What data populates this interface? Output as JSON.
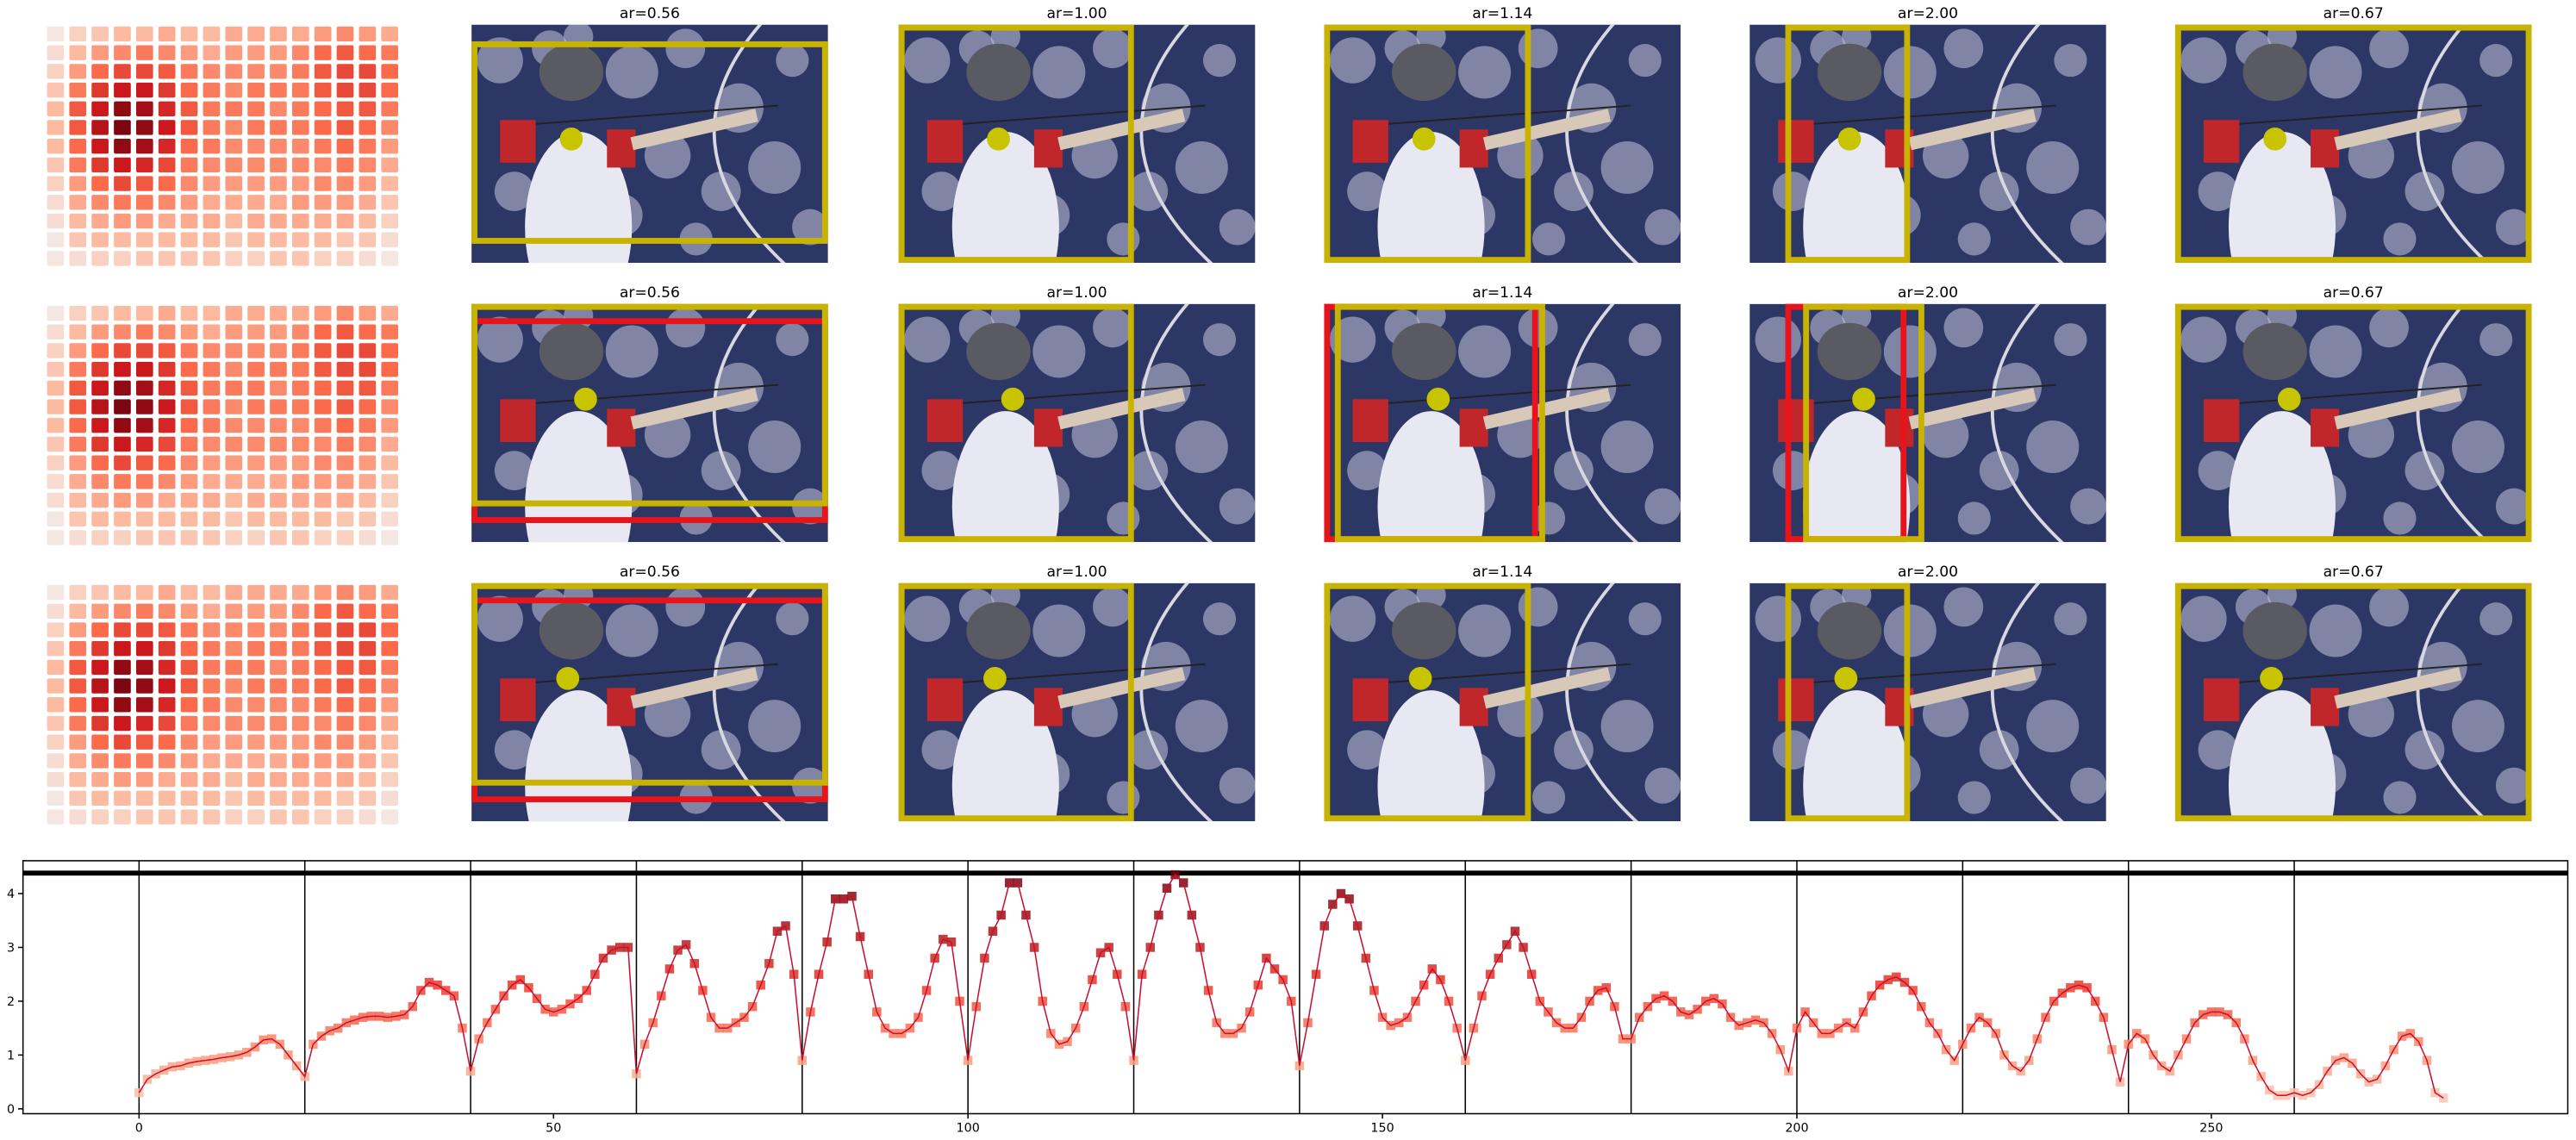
{
  "panels": {
    "rows": [
      {
        "titles": [
          "ar=0.56",
          "ar=1.00",
          "ar=1.14",
          "ar=2.00",
          "ar=0.67"
        ]
      },
      {
        "titles": [
          "ar=0.56",
          "ar=1.00",
          "ar=1.14",
          "ar=2.00",
          "ar=0.67"
        ]
      },
      {
        "titles": [
          "ar=0.56",
          "ar=1.00",
          "ar=1.14",
          "ar=2.00",
          "ar=0.67"
        ]
      }
    ],
    "heatmap": {
      "type": "heatmap",
      "color_scale": [
        "#f2f2f2",
        "#fcbba1",
        "#fb6a4a",
        "#cb181d",
        "#67000d"
      ],
      "values": [
        [
          0.05,
          0.15,
          0.2,
          0.25,
          0.25,
          0.3,
          0.25,
          0.25,
          0.3,
          0.3,
          0.3,
          0.3,
          0.35,
          0.4,
          0.35,
          0.3
        ],
        [
          0.1,
          0.25,
          0.35,
          0.4,
          0.45,
          0.4,
          0.35,
          0.3,
          0.35,
          0.35,
          0.35,
          0.4,
          0.5,
          0.55,
          0.5,
          0.45
        ],
        [
          0.15,
          0.35,
          0.5,
          0.6,
          0.6,
          0.55,
          0.45,
          0.4,
          0.4,
          0.4,
          0.4,
          0.45,
          0.55,
          0.6,
          0.6,
          0.5
        ],
        [
          0.2,
          0.45,
          0.65,
          0.75,
          0.75,
          0.65,
          0.5,
          0.45,
          0.4,
          0.45,
          0.45,
          0.45,
          0.55,
          0.6,
          0.6,
          0.5
        ],
        [
          0.25,
          0.55,
          0.75,
          0.9,
          0.85,
          0.7,
          0.55,
          0.45,
          0.45,
          0.45,
          0.4,
          0.45,
          0.5,
          0.55,
          0.55,
          0.45
        ],
        [
          0.25,
          0.55,
          0.8,
          0.95,
          0.9,
          0.75,
          0.55,
          0.45,
          0.4,
          0.45,
          0.45,
          0.45,
          0.5,
          0.55,
          0.5,
          0.4
        ],
        [
          0.25,
          0.5,
          0.75,
          0.9,
          0.85,
          0.7,
          0.5,
          0.45,
          0.4,
          0.4,
          0.4,
          0.4,
          0.45,
          0.5,
          0.45,
          0.35
        ],
        [
          0.2,
          0.45,
          0.65,
          0.75,
          0.7,
          0.6,
          0.45,
          0.4,
          0.4,
          0.4,
          0.4,
          0.4,
          0.4,
          0.45,
          0.4,
          0.3
        ],
        [
          0.15,
          0.35,
          0.5,
          0.6,
          0.55,
          0.5,
          0.4,
          0.35,
          0.35,
          0.35,
          0.35,
          0.35,
          0.4,
          0.4,
          0.35,
          0.25
        ],
        [
          0.1,
          0.3,
          0.4,
          0.45,
          0.45,
          0.4,
          0.35,
          0.3,
          0.3,
          0.3,
          0.3,
          0.35,
          0.35,
          0.35,
          0.3,
          0.2
        ],
        [
          0.1,
          0.25,
          0.3,
          0.35,
          0.35,
          0.3,
          0.3,
          0.3,
          0.25,
          0.3,
          0.3,
          0.3,
          0.3,
          0.3,
          0.25,
          0.15
        ],
        [
          0.05,
          0.2,
          0.25,
          0.25,
          0.25,
          0.25,
          0.25,
          0.25,
          0.2,
          0.25,
          0.25,
          0.25,
          0.25,
          0.2,
          0.2,
          0.1
        ],
        [
          0.05,
          0.1,
          0.15,
          0.15,
          0.2,
          0.2,
          0.2,
          0.2,
          0.15,
          0.15,
          0.2,
          0.2,
          0.15,
          0.15,
          0.1,
          0.05
        ]
      ]
    }
  },
  "chart_data": {
    "type": "line",
    "color": "#c8102e",
    "marker_color_scale": [
      "#fcd5c5",
      "#fc9272",
      "#ef3b2c",
      "#a50f15",
      "#67000d"
    ],
    "x": [
      0,
      1,
      2,
      3,
      4,
      5,
      6,
      7,
      8,
      9,
      10,
      11,
      12,
      13,
      14,
      15,
      16,
      17,
      18,
      19,
      20,
      21,
      22,
      23,
      24,
      25,
      26,
      27,
      28,
      29,
      30,
      31,
      32,
      33,
      34,
      35,
      36,
      37,
      38,
      39,
      40,
      41,
      42,
      43,
      44,
      45,
      46,
      47,
      48,
      49,
      50,
      51,
      52,
      53,
      54,
      55,
      56,
      57,
      58,
      59,
      60,
      61,
      62,
      63,
      64,
      65,
      66,
      67,
      68,
      69,
      70,
      71,
      72,
      73,
      74,
      75,
      76,
      77,
      78,
      79,
      80,
      81,
      82,
      83,
      84,
      85,
      86,
      87,
      88,
      89,
      90,
      91,
      92,
      93,
      94,
      95,
      96,
      97,
      98,
      99,
      100,
      101,
      102,
      103,
      104,
      105,
      106,
      107,
      108,
      109,
      110,
      111,
      112,
      113,
      114,
      115,
      116,
      117,
      118,
      119,
      120,
      121,
      122,
      123,
      124,
      125,
      126,
      127,
      128,
      129,
      130,
      131,
      132,
      133,
      134,
      135,
      136,
      137,
      138,
      139,
      140,
      141,
      142,
      143,
      144,
      145,
      146,
      147,
      148,
      149,
      150,
      151,
      152,
      153,
      154,
      155,
      156,
      157,
      158,
      159,
      160,
      161,
      162,
      163,
      164,
      165,
      166,
      167,
      168,
      169,
      170,
      171,
      172,
      173,
      174,
      175,
      176,
      177,
      178,
      179,
      180,
      181,
      182,
      183,
      184,
      185,
      186,
      187,
      188,
      189,
      190,
      191,
      192,
      193,
      194,
      195,
      196,
      197,
      198,
      199,
      200,
      201,
      202,
      203,
      204,
      205,
      206,
      207,
      208,
      209,
      210,
      211,
      212,
      213,
      214,
      215,
      216,
      217,
      218,
      219,
      220,
      221,
      222,
      223,
      224,
      225,
      226,
      227,
      228,
      229,
      230,
      231,
      232,
      233,
      234,
      235,
      236,
      237,
      238,
      239,
      240,
      241,
      242,
      243,
      244,
      245,
      246,
      247,
      248,
      249,
      250,
      251,
      252,
      253,
      254,
      255,
      256,
      257,
      258,
      259,
      260,
      261,
      262,
      263,
      264,
      265,
      266,
      267,
      268,
      269,
      270,
      271,
      272,
      273,
      274,
      275,
      276,
      277,
      278
    ],
    "values": [
      0.3,
      0.55,
      0.65,
      0.72,
      0.78,
      0.8,
      0.85,
      0.88,
      0.9,
      0.92,
      0.95,
      0.97,
      1.0,
      1.05,
      1.15,
      1.28,
      1.3,
      1.2,
      1.0,
      0.8,
      0.6,
      1.2,
      1.35,
      1.45,
      1.5,
      1.6,
      1.65,
      1.7,
      1.72,
      1.72,
      1.7,
      1.72,
      1.75,
      1.9,
      2.2,
      2.35,
      2.3,
      2.2,
      2.1,
      1.5,
      0.7,
      1.3,
      1.6,
      1.85,
      2.1,
      2.3,
      2.4,
      2.25,
      2.05,
      1.85,
      1.8,
      1.85,
      1.95,
      2.05,
      2.2,
      2.5,
      2.8,
      2.95,
      3.0,
      3.0,
      0.65,
      1.2,
      1.6,
      2.1,
      2.6,
      2.95,
      3.05,
      2.7,
      2.2,
      1.7,
      1.5,
      1.5,
      1.6,
      1.7,
      1.9,
      2.3,
      2.7,
      3.3,
      3.4,
      2.5,
      0.9,
      1.8,
      2.5,
      3.1,
      3.9,
      3.9,
      3.95,
      3.2,
      2.5,
      1.8,
      1.5,
      1.4,
      1.4,
      1.5,
      1.7,
      2.2,
      2.8,
      3.15,
      3.1,
      2.0,
      0.9,
      1.9,
      2.8,
      3.3,
      3.6,
      4.2,
      4.2,
      3.6,
      3.0,
      2.0,
      1.4,
      1.2,
      1.25,
      1.5,
      1.9,
      2.4,
      2.9,
      3.0,
      2.5,
      1.9,
      0.9,
      2.5,
      3.0,
      3.6,
      4.1,
      4.35,
      4.2,
      3.6,
      3.0,
      2.2,
      1.6,
      1.4,
      1.4,
      1.5,
      1.8,
      2.3,
      2.8,
      2.6,
      2.4,
      2.0,
      0.8,
      1.6,
      2.5,
      3.4,
      3.8,
      4.0,
      3.9,
      3.4,
      2.8,
      2.2,
      1.7,
      1.55,
      1.6,
      1.7,
      2.0,
      2.3,
      2.6,
      2.4,
      2.0,
      1.5,
      0.9,
      1.5,
      2.1,
      2.5,
      2.8,
      3.05,
      3.3,
      3.0,
      2.5,
      2.0,
      1.8,
      1.6,
      1.5,
      1.5,
      1.7,
      2.0,
      2.2,
      2.25,
      1.9,
      1.3,
      1.3,
      1.7,
      1.9,
      2.05,
      2.1,
      2.0,
      1.8,
      1.75,
      1.85,
      2.0,
      2.05,
      1.95,
      1.7,
      1.55,
      1.6,
      1.65,
      1.6,
      1.4,
      1.1,
      0.7,
      1.5,
      1.8,
      1.6,
      1.4,
      1.4,
      1.5,
      1.6,
      1.5,
      1.8,
      2.1,
      2.3,
      2.4,
      2.45,
      2.35,
      2.2,
      1.9,
      1.6,
      1.4,
      1.1,
      0.9,
      1.2,
      1.5,
      1.7,
      1.6,
      1.4,
      1.0,
      0.8,
      0.7,
      0.9,
      1.3,
      1.7,
      2.0,
      2.15,
      2.25,
      2.3,
      2.25,
      2.0,
      1.7,
      1.1,
      0.5,
      1.2,
      1.4,
      1.3,
      1.0,
      0.8,
      0.7,
      1.0,
      1.3,
      1.6,
      1.75,
      1.8,
      1.8,
      1.75,
      1.6,
      1.3,
      0.9,
      0.6,
      0.35,
      0.25,
      0.25,
      0.3,
      0.25,
      0.3,
      0.45,
      0.7,
      0.9,
      0.95,
      0.85,
      0.65,
      0.5,
      0.55,
      0.8,
      1.1,
      1.35,
      1.4,
      1.25,
      0.9,
      0.3,
      0.2
    ],
    "xlim": [
      -14,
      293
    ],
    "ylim": [
      -0.09,
      4.61
    ],
    "xticks": [
      0,
      50,
      100,
      150,
      200,
      250
    ],
    "yticks": [
      0,
      1,
      2,
      3,
      4
    ],
    "vlines": [
      0,
      20,
      40,
      60,
      80,
      100,
      120,
      140,
      160,
      180,
      200,
      220,
      240,
      260
    ],
    "hline": 4.38,
    "hline_color": "#000000",
    "vline_color": "#000000"
  }
}
